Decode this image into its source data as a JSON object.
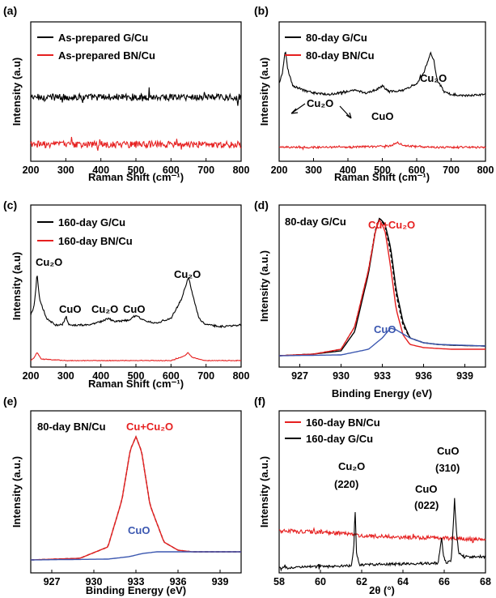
{
  "chart_data": [
    {
      "panel": "(a)",
      "type": "line",
      "xlabel": "Raman Shift (cm⁻¹)",
      "ylabel": "Intensity (a.u)",
      "xlim": [
        200,
        800
      ],
      "ylim": [
        0,
        10
      ],
      "xticks": [
        200,
        300,
        400,
        500,
        600,
        700,
        800
      ],
      "y_tick_labels": false,
      "legend": "top-left",
      "series": [
        {
          "name": "As-prepared G/Cu",
          "color": "#000000",
          "x": [
            200,
            800
          ],
          "y": [
            4.6,
            4.6
          ],
          "noise": 0.25
        },
        {
          "name": "As-prepared BN/Cu",
          "color": "#e62020",
          "x": [
            200,
            800
          ],
          "y": [
            1.2,
            1.2
          ],
          "noise": 0.25
        }
      ],
      "annotations": []
    },
    {
      "panel": "(b)",
      "type": "line",
      "xlabel": "Raman Shift (cm⁻¹)",
      "ylabel": "Intensity (a.u)",
      "xlim": [
        200,
        800
      ],
      "ylim": [
        0,
        10
      ],
      "xticks": [
        200,
        300,
        400,
        500,
        600,
        700,
        800
      ],
      "y_tick_labels": false,
      "legend": "top-left",
      "series": [
        {
          "name": "80-day G/Cu",
          "color": "#000000",
          "x": [
            200,
            210,
            218,
            225,
            240,
            270,
            300,
            350,
            400,
            420,
            450,
            480,
            500,
            520,
            560,
            600,
            620,
            640,
            650,
            660,
            680,
            700,
            750,
            800
          ],
          "y": [
            5.6,
            6.4,
            8.0,
            6.6,
            5.4,
            5.1,
            4.9,
            4.8,
            5.0,
            5.1,
            4.9,
            5.1,
            5.4,
            5.0,
            5.1,
            5.6,
            6.3,
            7.8,
            7.2,
            5.8,
            5.0,
            4.8,
            4.7,
            4.8
          ],
          "noise": 0.08
        },
        {
          "name": "80-day BN/Cu",
          "color": "#e62020",
          "x": [
            200,
            400,
            520,
            545,
            570,
            650,
            800
          ],
          "y": [
            1.0,
            1.0,
            1.1,
            1.3,
            1.1,
            1.0,
            1.0
          ],
          "noise": 0.07
        }
      ],
      "annotations": [
        "Cu₂O",
        "CuO",
        "Cu₂O"
      ]
    },
    {
      "panel": "(c)",
      "type": "line",
      "xlabel": "Raman Shift (cm⁻¹)",
      "ylabel": "Intensity (a.u)",
      "xlim": [
        200,
        800
      ],
      "ylim": [
        0,
        10
      ],
      "xticks": [
        200,
        300,
        400,
        500,
        600,
        700,
        800
      ],
      "y_tick_labels": false,
      "legend": "top-left",
      "series": [
        {
          "name": "160-day G/Cu",
          "color": "#000000",
          "x": [
            200,
            210,
            218,
            225,
            245,
            270,
            290,
            300,
            310,
            360,
            400,
            420,
            440,
            480,
            500,
            520,
            560,
            600,
            630,
            650,
            660,
            680,
            700,
            750,
            800
          ],
          "y": [
            3.2,
            3.8,
            5.8,
            4.2,
            3.0,
            2.6,
            2.6,
            3.1,
            2.6,
            2.6,
            2.8,
            3.0,
            2.8,
            2.9,
            3.2,
            2.9,
            2.7,
            3.0,
            4.2,
            5.6,
            4.6,
            3.0,
            2.6,
            2.5,
            2.6
          ],
          "noise": 0.06
        },
        {
          "name": "160-day BN/Cu",
          "color": "#e62020",
          "x": [
            200,
            210,
            218,
            230,
            300,
            600,
            640,
            648,
            660,
            700,
            800
          ],
          "y": [
            0.4,
            0.6,
            0.9,
            0.5,
            0.4,
            0.4,
            0.7,
            0.9,
            0.6,
            0.4,
            0.4
          ],
          "noise": 0.02
        }
      ],
      "annotations": [
        "Cu₂O",
        "CuO",
        "Cu₂O",
        "CuO",
        "Cu₂O"
      ]
    },
    {
      "panel": "(d)",
      "type": "line",
      "title": "80-day G/Cu",
      "xlabel": "Binding Energy (eV)",
      "ylabel": "Intensity (a.u.)",
      "xlim": [
        925.5,
        940.5
      ],
      "ylim": [
        0,
        10
      ],
      "xticks": [
        927,
        930,
        933,
        936,
        939
      ],
      "y_tick_labels": false,
      "legend": "none",
      "series": [
        {
          "name": "",
          "color": "#000000",
          "dashed": false,
          "x": [
            925.5,
            928,
            930,
            931,
            932,
            932.5,
            932.8,
            933.2,
            933.6,
            934,
            934.5,
            935,
            936,
            937,
            938,
            940.5
          ],
          "y": [
            0.7,
            0.8,
            1.0,
            2.2,
            5.8,
            8.4,
            9.2,
            8.8,
            7.4,
            4.8,
            2.8,
            1.8,
            1.5,
            1.4,
            1.35,
            1.3
          ]
        },
        {
          "name": "",
          "color": "#000000",
          "dashed": true,
          "x": [
            925.5,
            928,
            930,
            931,
            932,
            932.5,
            932.8,
            933.2,
            933.6,
            934,
            934.5,
            935,
            936,
            937,
            938,
            940.5
          ],
          "y": [
            0.7,
            0.8,
            1.1,
            2.5,
            6.0,
            8.5,
            9.2,
            8.7,
            7.1,
            4.5,
            2.6,
            1.8,
            1.5,
            1.4,
            1.35,
            1.3
          ]
        },
        {
          "name": "Cu+Cu₂O",
          "color": "#e62020",
          "dashed": false,
          "x": [
            925.5,
            928,
            930,
            931,
            932,
            932.5,
            932.8,
            933.2,
            933.6,
            934,
            934.5,
            935,
            936,
            937,
            938,
            940.5
          ],
          "y": [
            0.7,
            0.8,
            1.1,
            2.5,
            6.0,
            8.4,
            9.1,
            8.4,
            6.2,
            3.6,
            2.0,
            1.4,
            1.2,
            1.15,
            1.1,
            1.1
          ]
        },
        {
          "name": "CuO",
          "color": "#3b57b0",
          "dashed": false,
          "x": [
            925.5,
            930,
            932,
            933,
            933.6,
            934,
            935,
            936,
            937,
            940.5
          ],
          "y": [
            0.7,
            0.75,
            1.1,
            1.8,
            2.4,
            2.3,
            1.8,
            1.5,
            1.4,
            1.3
          ]
        }
      ],
      "annotations": [
        "Cu+Cu₂O",
        "CuO"
      ]
    },
    {
      "panel": "(e)",
      "type": "line",
      "title": "80-day BN/Cu",
      "xlabel": "Binding Energy (eV)",
      "ylabel": "Intensity (a.u.)",
      "xlim": [
        925.5,
        940.5
      ],
      "ylim": [
        0,
        10
      ],
      "xticks": [
        927,
        930,
        933,
        936,
        939
      ],
      "y_tick_labels": false,
      "legend": "none",
      "series": [
        {
          "name": "",
          "color": "#000000",
          "dashed": true,
          "x": [
            925.5,
            929,
            931,
            932,
            932.6,
            933,
            933.4,
            934,
            935,
            936,
            937,
            940.5
          ],
          "y": [
            0.8,
            0.9,
            1.6,
            4.5,
            7.6,
            8.4,
            7.5,
            4.2,
            1.9,
            1.4,
            1.3,
            1.3
          ]
        },
        {
          "name": "Cu+Cu₂O",
          "color": "#e62020",
          "dashed": false,
          "x": [
            925.5,
            929,
            931,
            932,
            932.6,
            933,
            933.4,
            934,
            935,
            936,
            937,
            940.5
          ],
          "y": [
            0.8,
            0.9,
            1.6,
            4.5,
            7.6,
            8.4,
            7.5,
            4.2,
            1.9,
            1.4,
            1.3,
            1.3
          ]
        },
        {
          "name": "CuO",
          "color": "#3b57b0",
          "dashed": false,
          "x": [
            925.5,
            931,
            932.5,
            933.5,
            934.5,
            935.5,
            936.5,
            940.5
          ],
          "y": [
            0.8,
            0.85,
            1.0,
            1.2,
            1.3,
            1.3,
            1.3,
            1.3
          ]
        }
      ],
      "annotations": [
        "Cu+Cu₂O",
        "CuO"
      ]
    },
    {
      "panel": "(f)",
      "type": "line",
      "xlabel": "2θ (°)",
      "ylabel": "Intensity (a.u.)",
      "xlim": [
        58,
        68
      ],
      "ylim": [
        0,
        10
      ],
      "xticks": [
        58,
        60,
        62,
        64,
        66,
        68
      ],
      "y_tick_labels": false,
      "legend": "top-left",
      "series": [
        {
          "name": "160-day BN/Cu",
          "color": "#e62020",
          "x": [
            58,
            61,
            62,
            64,
            66,
            68
          ],
          "y": [
            2.6,
            2.45,
            2.3,
            2.2,
            2.15,
            2.05
          ],
          "noise": 0.12
        },
        {
          "name": "160-day G/Cu",
          "color": "#000000",
          "x": [
            58,
            61.5,
            61.62,
            61.68,
            61.75,
            61.9,
            65.7,
            65.82,
            65.88,
            65.96,
            66.1,
            66.35,
            66.5,
            66.58,
            66.7,
            67,
            68
          ],
          "y": [
            0.3,
            0.45,
            1.5,
            4.0,
            1.2,
            0.5,
            0.6,
            1.6,
            2.2,
            1.0,
            0.6,
            0.8,
            4.6,
            2.8,
            1.2,
            1.0,
            1.0
          ],
          "noise": 0.08
        }
      ],
      "annotations": [
        "Cu₂O",
        "(220)",
        "CuO",
        "(022)",
        "CuO",
        "(310)"
      ]
    }
  ]
}
